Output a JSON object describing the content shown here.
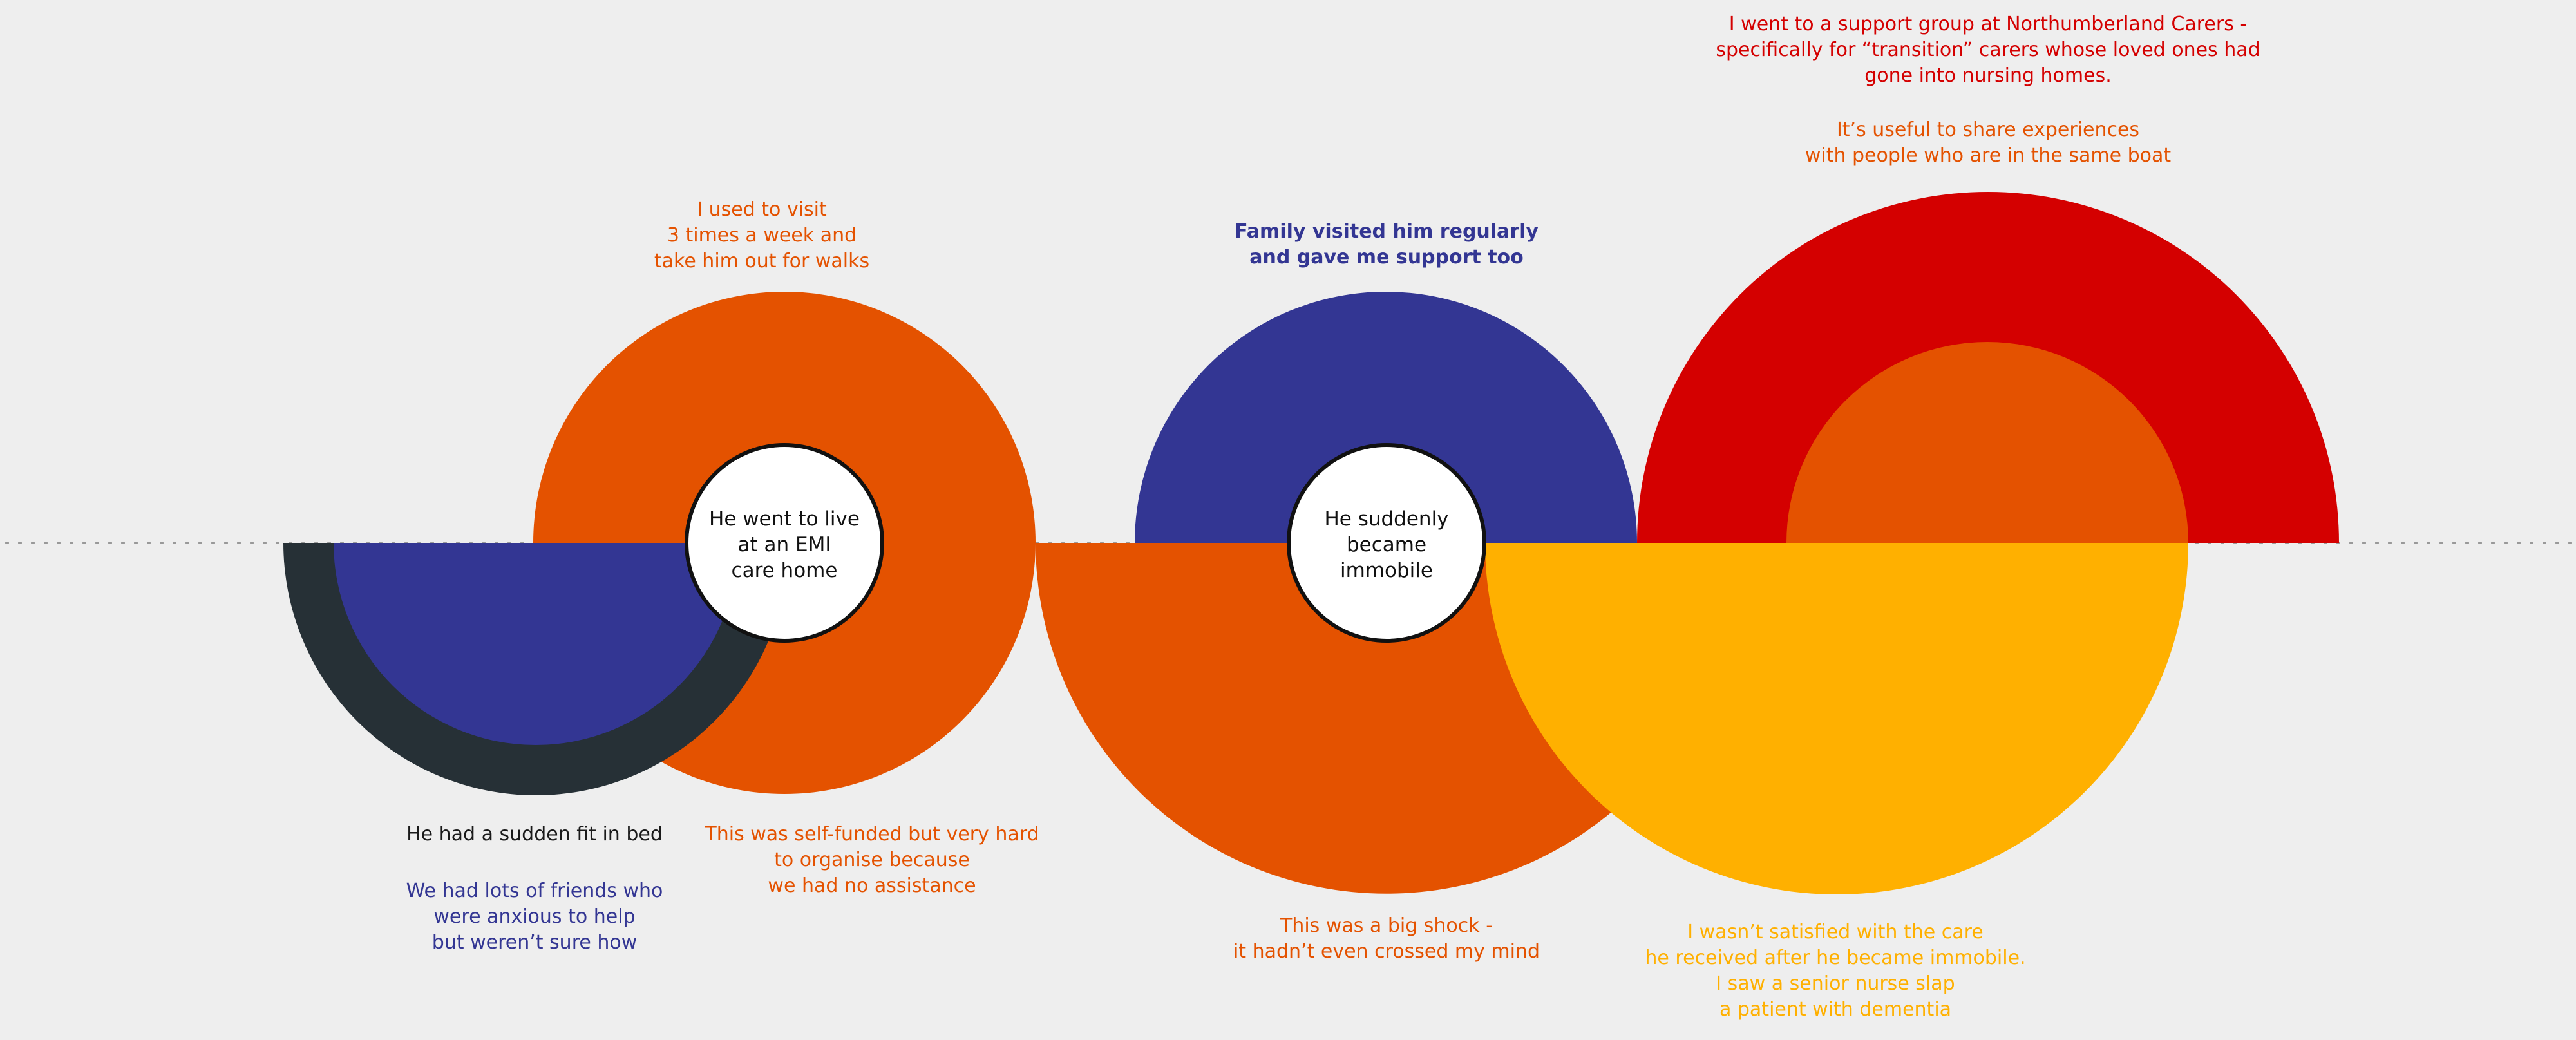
{
  "colors": {
    "background": "#eeeeee",
    "orange": "#e45200",
    "navy": "#333693",
    "dark": "#263036",
    "red": "#d40000",
    "yellow": "#ffb000",
    "white": "#ffffff",
    "text_dark": "#1a1a1a"
  },
  "nodes": {
    "care_home": "He went to live\nat an EMI\ncare home",
    "immobile": "He suddenly\nbecame\nimmobile"
  },
  "notes": {
    "visit": "I used to visit\n3 times a week and\ntake him out for walks",
    "family": "Family visited him regularly\nand gave me support too",
    "support_group": "I went to a support group at Northumberland Carers -\nspecifically for “transition” carers whose loved ones had\ngone into nursing homes.",
    "share": "It’s useful to share experiences\nwith people who are in the same boat",
    "fit": "He had a sudden fit in bed",
    "friends": "We had lots of friends who\nwere anxious to help\nbut weren’t sure how",
    "self_funded": "This was self-funded but very hard\nto organise because\nwe had no assistance",
    "shock": "This was a big shock -\nit hadn’t even crossed my mind",
    "not_satisfied": "I wasn’t satisfied with the care\nhe received after he became immobile.\nI saw a senior nurse slap\na patient with dementia"
  }
}
